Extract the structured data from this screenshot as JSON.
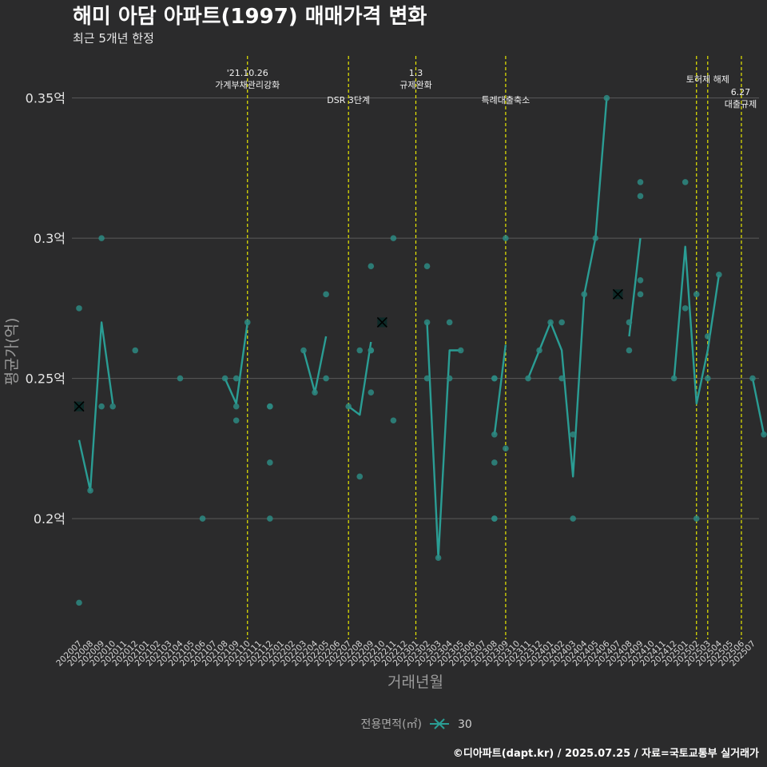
{
  "chart_data": {
    "type": "line",
    "title": "해미 아담 아파트(1997) 매매가격 변화",
    "subtitle": "최근 5개년 한정",
    "xlabel": "거래년월",
    "ylabel": "평균가(억)",
    "caption": "©디아파트(dapt.kr) / 2025.07.25 / 자료=국토교통부 실거래가",
    "legend": {
      "title": "전용면적(㎡)",
      "entries": [
        "30"
      ],
      "position": "bottom"
    },
    "colors": {
      "series": "#2a9d94",
      "point": "#2d8a82",
      "event": "#e8e800",
      "grid": "#5a5a5a",
      "marker": "#0d2a28"
    },
    "categories": [
      "202007",
      "202008",
      "202009",
      "202010",
      "202011",
      "202012",
      "202101",
      "202102",
      "202103",
      "202104",
      "202105",
      "202106",
      "202107",
      "202108",
      "202109",
      "202110",
      "202111",
      "202112",
      "202201",
      "202202",
      "202203",
      "202204",
      "202205",
      "202206",
      "202207",
      "202208",
      "202209",
      "202210",
      "202211",
      "202212",
      "202301",
      "202302",
      "202303",
      "202304",
      "202305",
      "202306",
      "202307",
      "202308",
      "202309",
      "202310",
      "202311",
      "202312",
      "202401",
      "202402",
      "202403",
      "202404",
      "202405",
      "202406",
      "202407",
      "202408",
      "202409",
      "202410",
      "202411",
      "202412",
      "202501",
      "202502",
      "202503",
      "202504",
      "202505",
      "202506",
      "202507"
    ],
    "ylim": [
      0.157,
      0.365
    ],
    "yticks": [
      {
        "value": 0.2,
        "label": "0.2억"
      },
      {
        "value": 0.25,
        "label": "0.25억"
      },
      {
        "value": 0.3,
        "label": "0.3억"
      },
      {
        "value": 0.35,
        "label": "0.35억"
      }
    ],
    "series": [
      {
        "name": "30",
        "segments": [
          [
            [
              0,
              0.228
            ],
            [
              1,
              0.21
            ],
            [
              2,
              0.27
            ],
            [
              3,
              0.241
            ]
          ],
          [
            [
              13,
              0.25
            ],
            [
              14,
              0.241
            ],
            [
              15,
              0.27
            ]
          ],
          [
            [
              20,
              0.26
            ],
            [
              21,
              0.245
            ],
            [
              22,
              0.265
            ]
          ],
          [
            [
              24,
              0.24
            ],
            [
              25,
              0.237
            ],
            [
              26,
              0.263
            ]
          ],
          [
            [
              31,
              0.27
            ],
            [
              32,
              0.186
            ],
            [
              33,
              0.26
            ],
            [
              34,
              0.26
            ]
          ],
          [
            [
              37,
              0.23
            ],
            [
              38,
              0.262
            ]
          ],
          [
            [
              40,
              0.25
            ],
            [
              41,
              0.26
            ],
            [
              42,
              0.27
            ],
            [
              43,
              0.26
            ],
            [
              44,
              0.215
            ],
            [
              45,
              0.28
            ],
            [
              46,
              0.3
            ],
            [
              47,
              0.35
            ]
          ],
          [
            [
              49,
              0.265
            ],
            [
              50,
              0.3
            ]
          ],
          [
            [
              53,
              0.25
            ],
            [
              54,
              0.297
            ],
            [
              55,
              0.241
            ],
            [
              56,
              0.26
            ],
            [
              57,
              0.287
            ]
          ],
          [
            [
              60,
              0.25
            ],
            [
              61,
              0.23
            ]
          ]
        ]
      }
    ],
    "points": [
      [
        0,
        0.275
      ],
      [
        0,
        0.24
      ],
      [
        0,
        0.17
      ],
      [
        1,
        0.21
      ],
      [
        2,
        0.3
      ],
      [
        2,
        0.24
      ],
      [
        3,
        0.24
      ],
      [
        5,
        0.26
      ],
      [
        9,
        0.25
      ],
      [
        11,
        0.2
      ],
      [
        13,
        0.25
      ],
      [
        14,
        0.25
      ],
      [
        14,
        0.24
      ],
      [
        14,
        0.235
      ],
      [
        15,
        0.27
      ],
      [
        17,
        0.24
      ],
      [
        17,
        0.24
      ],
      [
        17,
        0.22
      ],
      [
        17,
        0.2
      ],
      [
        20,
        0.26
      ],
      [
        21,
        0.245
      ],
      [
        22,
        0.28
      ],
      [
        22,
        0.25
      ],
      [
        24,
        0.24
      ],
      [
        25,
        0.26
      ],
      [
        25,
        0.215
      ],
      [
        26,
        0.29
      ],
      [
        26,
        0.26
      ],
      [
        26,
        0.26
      ],
      [
        26,
        0.245
      ],
      [
        28,
        0.3
      ],
      [
        28,
        0.235
      ],
      [
        31,
        0.29
      ],
      [
        31,
        0.27
      ],
      [
        31,
        0.25
      ],
      [
        32,
        0.186
      ],
      [
        33,
        0.27
      ],
      [
        33,
        0.25
      ],
      [
        34,
        0.26
      ],
      [
        37,
        0.25
      ],
      [
        37,
        0.25
      ],
      [
        37,
        0.23
      ],
      [
        37,
        0.22
      ],
      [
        37,
        0.2
      ],
      [
        37,
        0.2
      ],
      [
        38,
        0.3
      ],
      [
        38,
        0.225
      ],
      [
        40,
        0.25
      ],
      [
        41,
        0.26
      ],
      [
        42,
        0.27
      ],
      [
        43,
        0.27
      ],
      [
        43,
        0.25
      ],
      [
        44,
        0.23
      ],
      [
        44,
        0.2
      ],
      [
        45,
        0.28
      ],
      [
        46,
        0.3
      ],
      [
        47,
        0.35
      ],
      [
        49,
        0.27
      ],
      [
        49,
        0.26
      ],
      [
        50,
        0.32
      ],
      [
        50,
        0.315
      ],
      [
        50,
        0.285
      ],
      [
        50,
        0.28
      ],
      [
        53,
        0.25
      ],
      [
        54,
        0.32
      ],
      [
        54,
        0.275
      ],
      [
        55,
        0.28
      ],
      [
        55,
        0.2
      ],
      [
        56,
        0.265
      ],
      [
        56,
        0.25
      ],
      [
        57,
        0.287
      ],
      [
        60,
        0.25
      ],
      [
        61,
        0.23
      ]
    ],
    "highlights": [
      [
        0,
        0.24
      ],
      [
        27,
        0.27
      ],
      [
        48,
        0.28
      ]
    ],
    "events": [
      {
        "x": 15,
        "labels": [
          "'21.10.26",
          "가계부채관리강화"
        ],
        "tier": "high"
      },
      {
        "x": 24,
        "labels": [
          "DSR 3단계"
        ],
        "tier": "low"
      },
      {
        "x": 30,
        "labels": [
          "1.3",
          "규제완화"
        ],
        "tier": "high"
      },
      {
        "x": 38,
        "labels": [
          "특례대출축소"
        ],
        "tier": "low"
      },
      {
        "x": 55,
        "labels": [
          ""
        ],
        "tier": "none"
      },
      {
        "x": 56,
        "labels": [
          "토허제 해제"
        ],
        "tier": "mid"
      },
      {
        "x": 59,
        "labels": [
          "6.27",
          "대출규제"
        ],
        "tier": "right"
      }
    ]
  }
}
